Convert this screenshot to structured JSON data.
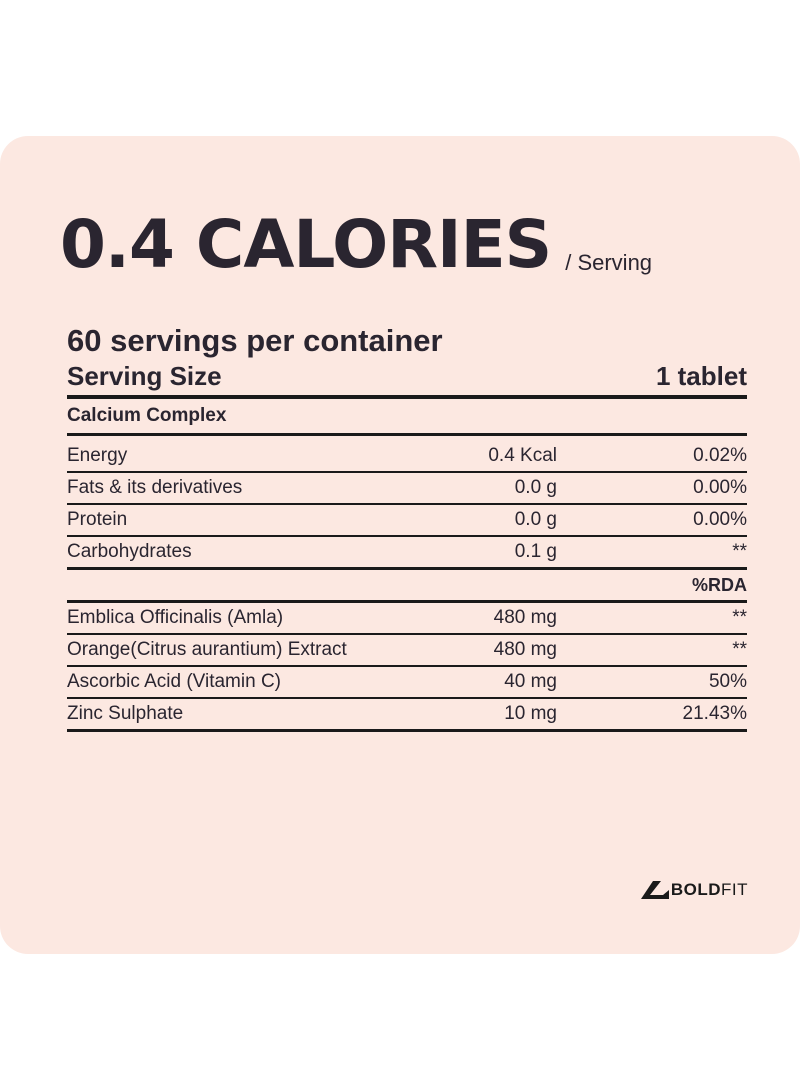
{
  "headline": {
    "value": "0.4 CALORIES",
    "unit": "/ Serving"
  },
  "label": {
    "servings": "60 servings per container",
    "serving_size_label": "Serving Size",
    "serving_size_value": "1 tablet",
    "section_title": "Calcium Complex",
    "macros": [
      {
        "name": "Energy",
        "amount": "0.4 Kcal",
        "pct": "0.02%"
      },
      {
        "name": "Fats & its derivatives",
        "amount": "0.0 g",
        "pct": "0.00%"
      },
      {
        "name": "Protein",
        "amount": "0.0 g",
        "pct": "0.00%"
      },
      {
        "name": "Carbohydrates",
        "amount": "0.1 g",
        "pct": "**"
      }
    ],
    "rda_header": "%RDA",
    "ingredients": [
      {
        "name": "Emblica Officinalis (Amla)",
        "amount": "480 mg",
        "pct": "**"
      },
      {
        "name": "Orange(Citrus aurantium) Extract",
        "amount": "480 mg",
        "pct": "**"
      },
      {
        "name": "Ascorbic Acid (Vitamin C)",
        "amount": "40 mg",
        "pct": "50%"
      },
      {
        "name": "Zinc Sulphate",
        "amount": "10 mg",
        "pct": "21.43%"
      }
    ]
  },
  "brand": {
    "bold": "BOLD",
    "light": "FIT"
  }
}
